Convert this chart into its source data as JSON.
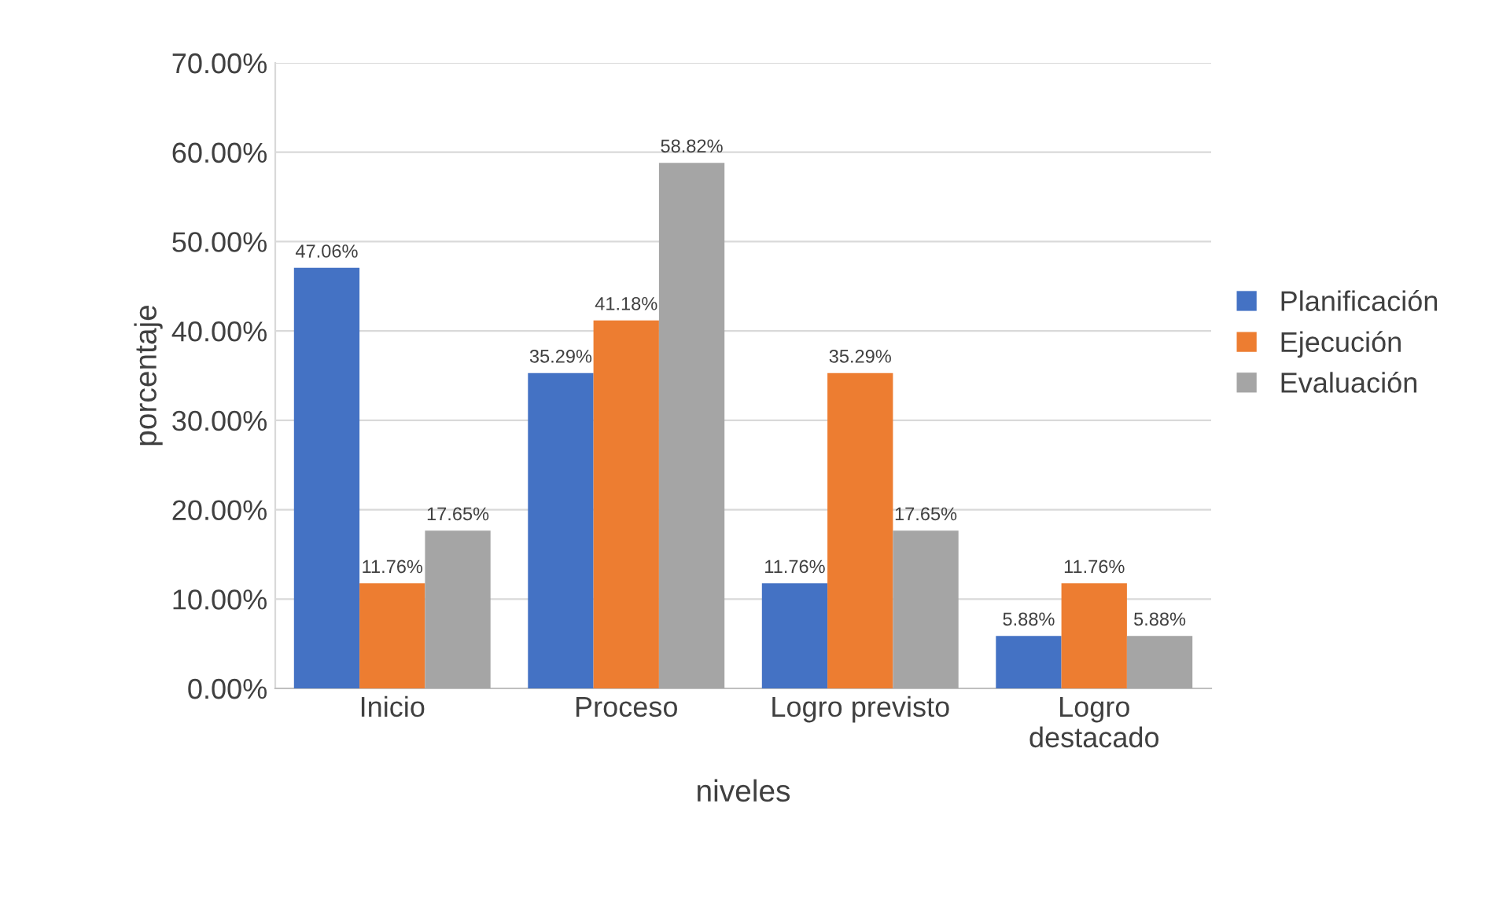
{
  "chart_data": {
    "type": "bar",
    "xlabel": "niveles",
    "ylabel": "porcentaje",
    "categories": [
      "Inicio",
      "Proceso",
      "Logro previsto",
      "Logro\ndestacado"
    ],
    "series": [
      {
        "name": "Planificación",
        "color": "#4472c4",
        "values": [
          47.06,
          35.29,
          11.76,
          5.88
        ],
        "value_labels": [
          "47.06%",
          "35.29%",
          "11.76%",
          "5.88%"
        ]
      },
      {
        "name": "Ejecución",
        "color": "#ed7d31",
        "values": [
          11.76,
          41.18,
          35.29,
          11.76
        ],
        "value_labels": [
          "11.76%",
          "41.18%",
          "35.29%",
          "11.76%"
        ]
      },
      {
        "name": "Evaluación",
        "color": "#a5a5a5",
        "values": [
          17.65,
          58.82,
          17.65,
          5.88
        ],
        "value_labels": [
          "17.65%",
          "58.82%",
          "17.65%",
          "5.88%"
        ]
      }
    ],
    "ylim": [
      0,
      70
    ],
    "yticks": [
      {
        "value": 0,
        "label": "0.00%"
      },
      {
        "value": 10,
        "label": "10.00%"
      },
      {
        "value": 20,
        "label": "20.00%"
      },
      {
        "value": 30,
        "label": "30.00%"
      },
      {
        "value": 40,
        "label": "40.00%"
      },
      {
        "value": 50,
        "label": "50.00%"
      },
      {
        "value": 60,
        "label": "60.00%"
      },
      {
        "value": 70,
        "label": "70.00%"
      }
    ],
    "grid": "y",
    "legend": "right"
  }
}
